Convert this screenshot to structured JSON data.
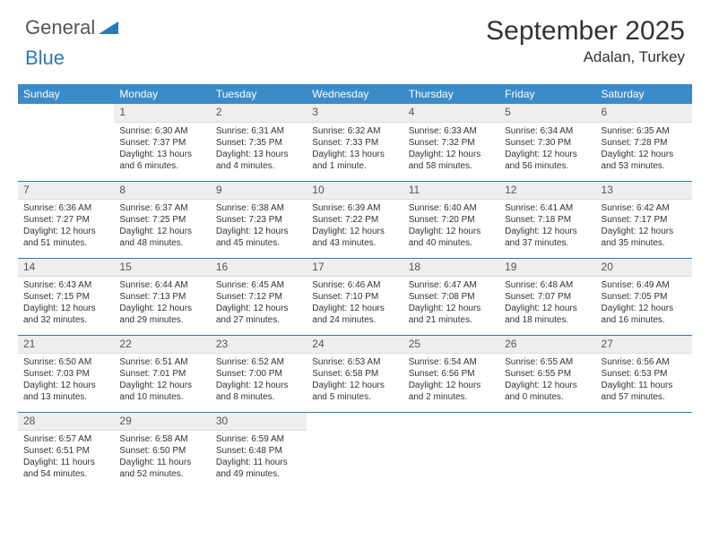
{
  "brand": {
    "word1": "General",
    "word2": "Blue",
    "logo_color": "#2a7ab8"
  },
  "header": {
    "title": "September 2025",
    "location": "Adalan, Turkey"
  },
  "colors": {
    "header_bg": "#3b8bc8",
    "header_text": "#ffffff",
    "row_divider": "#2a7ab8",
    "daynum_bg": "#eeeeee",
    "text": "#333333"
  },
  "weekdays": [
    "Sunday",
    "Monday",
    "Tuesday",
    "Wednesday",
    "Thursday",
    "Friday",
    "Saturday"
  ],
  "weeks": [
    [
      {
        "day": "",
        "sunrise": "",
        "sunset": "",
        "daylight": ""
      },
      {
        "day": "1",
        "sunrise": "Sunrise: 6:30 AM",
        "sunset": "Sunset: 7:37 PM",
        "daylight": "Daylight: 13 hours and 6 minutes."
      },
      {
        "day": "2",
        "sunrise": "Sunrise: 6:31 AM",
        "sunset": "Sunset: 7:35 PM",
        "daylight": "Daylight: 13 hours and 4 minutes."
      },
      {
        "day": "3",
        "sunrise": "Sunrise: 6:32 AM",
        "sunset": "Sunset: 7:33 PM",
        "daylight": "Daylight: 13 hours and 1 minute."
      },
      {
        "day": "4",
        "sunrise": "Sunrise: 6:33 AM",
        "sunset": "Sunset: 7:32 PM",
        "daylight": "Daylight: 12 hours and 58 minutes."
      },
      {
        "day": "5",
        "sunrise": "Sunrise: 6:34 AM",
        "sunset": "Sunset: 7:30 PM",
        "daylight": "Daylight: 12 hours and 56 minutes."
      },
      {
        "day": "6",
        "sunrise": "Sunrise: 6:35 AM",
        "sunset": "Sunset: 7:28 PM",
        "daylight": "Daylight: 12 hours and 53 minutes."
      }
    ],
    [
      {
        "day": "7",
        "sunrise": "Sunrise: 6:36 AM",
        "sunset": "Sunset: 7:27 PM",
        "daylight": "Daylight: 12 hours and 51 minutes."
      },
      {
        "day": "8",
        "sunrise": "Sunrise: 6:37 AM",
        "sunset": "Sunset: 7:25 PM",
        "daylight": "Daylight: 12 hours and 48 minutes."
      },
      {
        "day": "9",
        "sunrise": "Sunrise: 6:38 AM",
        "sunset": "Sunset: 7:23 PM",
        "daylight": "Daylight: 12 hours and 45 minutes."
      },
      {
        "day": "10",
        "sunrise": "Sunrise: 6:39 AM",
        "sunset": "Sunset: 7:22 PM",
        "daylight": "Daylight: 12 hours and 43 minutes."
      },
      {
        "day": "11",
        "sunrise": "Sunrise: 6:40 AM",
        "sunset": "Sunset: 7:20 PM",
        "daylight": "Daylight: 12 hours and 40 minutes."
      },
      {
        "day": "12",
        "sunrise": "Sunrise: 6:41 AM",
        "sunset": "Sunset: 7:18 PM",
        "daylight": "Daylight: 12 hours and 37 minutes."
      },
      {
        "day": "13",
        "sunrise": "Sunrise: 6:42 AM",
        "sunset": "Sunset: 7:17 PM",
        "daylight": "Daylight: 12 hours and 35 minutes."
      }
    ],
    [
      {
        "day": "14",
        "sunrise": "Sunrise: 6:43 AM",
        "sunset": "Sunset: 7:15 PM",
        "daylight": "Daylight: 12 hours and 32 minutes."
      },
      {
        "day": "15",
        "sunrise": "Sunrise: 6:44 AM",
        "sunset": "Sunset: 7:13 PM",
        "daylight": "Daylight: 12 hours and 29 minutes."
      },
      {
        "day": "16",
        "sunrise": "Sunrise: 6:45 AM",
        "sunset": "Sunset: 7:12 PM",
        "daylight": "Daylight: 12 hours and 27 minutes."
      },
      {
        "day": "17",
        "sunrise": "Sunrise: 6:46 AM",
        "sunset": "Sunset: 7:10 PM",
        "daylight": "Daylight: 12 hours and 24 minutes."
      },
      {
        "day": "18",
        "sunrise": "Sunrise: 6:47 AM",
        "sunset": "Sunset: 7:08 PM",
        "daylight": "Daylight: 12 hours and 21 minutes."
      },
      {
        "day": "19",
        "sunrise": "Sunrise: 6:48 AM",
        "sunset": "Sunset: 7:07 PM",
        "daylight": "Daylight: 12 hours and 18 minutes."
      },
      {
        "day": "20",
        "sunrise": "Sunrise: 6:49 AM",
        "sunset": "Sunset: 7:05 PM",
        "daylight": "Daylight: 12 hours and 16 minutes."
      }
    ],
    [
      {
        "day": "21",
        "sunrise": "Sunrise: 6:50 AM",
        "sunset": "Sunset: 7:03 PM",
        "daylight": "Daylight: 12 hours and 13 minutes."
      },
      {
        "day": "22",
        "sunrise": "Sunrise: 6:51 AM",
        "sunset": "Sunset: 7:01 PM",
        "daylight": "Daylight: 12 hours and 10 minutes."
      },
      {
        "day": "23",
        "sunrise": "Sunrise: 6:52 AM",
        "sunset": "Sunset: 7:00 PM",
        "daylight": "Daylight: 12 hours and 8 minutes."
      },
      {
        "day": "24",
        "sunrise": "Sunrise: 6:53 AM",
        "sunset": "Sunset: 6:58 PM",
        "daylight": "Daylight: 12 hours and 5 minutes."
      },
      {
        "day": "25",
        "sunrise": "Sunrise: 6:54 AM",
        "sunset": "Sunset: 6:56 PM",
        "daylight": "Daylight: 12 hours and 2 minutes."
      },
      {
        "day": "26",
        "sunrise": "Sunrise: 6:55 AM",
        "sunset": "Sunset: 6:55 PM",
        "daylight": "Daylight: 12 hours and 0 minutes."
      },
      {
        "day": "27",
        "sunrise": "Sunrise: 6:56 AM",
        "sunset": "Sunset: 6:53 PM",
        "daylight": "Daylight: 11 hours and 57 minutes."
      }
    ],
    [
      {
        "day": "28",
        "sunrise": "Sunrise: 6:57 AM",
        "sunset": "Sunset: 6:51 PM",
        "daylight": "Daylight: 11 hours and 54 minutes."
      },
      {
        "day": "29",
        "sunrise": "Sunrise: 6:58 AM",
        "sunset": "Sunset: 6:50 PM",
        "daylight": "Daylight: 11 hours and 52 minutes."
      },
      {
        "day": "30",
        "sunrise": "Sunrise: 6:59 AM",
        "sunset": "Sunset: 6:48 PM",
        "daylight": "Daylight: 11 hours and 49 minutes."
      },
      {
        "day": "",
        "sunrise": "",
        "sunset": "",
        "daylight": ""
      },
      {
        "day": "",
        "sunrise": "",
        "sunset": "",
        "daylight": ""
      },
      {
        "day": "",
        "sunrise": "",
        "sunset": "",
        "daylight": ""
      },
      {
        "day": "",
        "sunrise": "",
        "sunset": "",
        "daylight": ""
      }
    ]
  ]
}
